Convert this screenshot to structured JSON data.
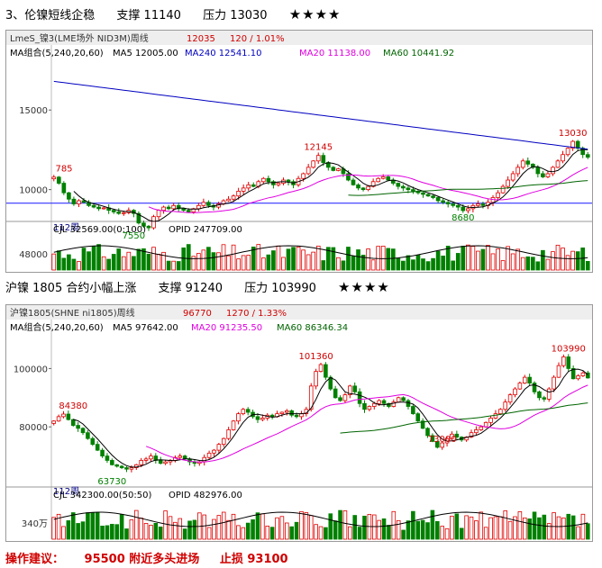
{
  "section1": {
    "title": "3、伦镍短线企稳",
    "support": "支撑 11140",
    "resistance": "压力 13030",
    "stars": "★★★★"
  },
  "section2": {
    "title": "沪镍 1805 合约小幅上涨",
    "support": "支撑 91240",
    "resistance": "压力 103990",
    "stars": "★★★★"
  },
  "advice": {
    "label": "操作建议：",
    "entry": "95500 附近多头进场",
    "stop": "止损 93100"
  },
  "colors": {
    "up": "#e00000",
    "down": "#008000",
    "ma5": "#000000",
    "ma20": "#e000e0",
    "ma60": "#006400",
    "ma240": "#0000c0",
    "support_line": "#3333ff"
  },
  "chart_data": [
    {
      "type": "candlestick",
      "instrument": "LmeS_镍3(LME场外 NID3M)周线",
      "last_price": "12035",
      "change": "120 / 1.01%",
      "legend": [
        "MA组合(5,240,20,60)",
        "MA5 12005.00",
        "MA240 12541.10",
        "MA20 11138.00",
        "MA60 10441.92"
      ],
      "period_label": "112周",
      "ylabels": [
        "15000",
        "10000"
      ],
      "ylim": [
        8000,
        17500
      ],
      "annotations": [
        {
          "text": "785",
          "x": 0,
          "y": 10785
        },
        {
          "text": "12145",
          "x": 53,
          "y": 12145
        },
        {
          "text": "7550",
          "x": 16,
          "y": 7550
        },
        {
          "text": "8680",
          "x": 82,
          "y": 8680
        },
        {
          "text": "13030",
          "x": 104,
          "y": 13030
        }
      ],
      "support_level": 9150,
      "closes": [
        10785,
        10400,
        9800,
        9400,
        9100,
        9300,
        9200,
        9000,
        8900,
        8800,
        8850,
        8700,
        8600,
        8500,
        8550,
        8700,
        8500,
        7900,
        7700,
        7600,
        8300,
        8700,
        8900,
        8800,
        9000,
        8800,
        8700,
        8600,
        8800,
        9000,
        9200,
        9000,
        8900,
        9100,
        9300,
        9400,
        9600,
        9900,
        10100,
        10300,
        10200,
        10500,
        10700,
        10500,
        10300,
        10400,
        10600,
        10500,
        10300,
        10700,
        11000,
        11400,
        11800,
        12145,
        11700,
        11400,
        11200,
        11300,
        11000,
        10600,
        10300,
        10100,
        10000,
        10200,
        10500,
        10700,
        10800,
        10600,
        10400,
        10200,
        10100,
        10000,
        9900,
        9800,
        9700,
        9600,
        9500,
        9300,
        9200,
        9100,
        9000,
        8900,
        8680,
        8800,
        9000,
        9100,
        9000,
        9200,
        9500,
        9800,
        10200,
        10600,
        11000,
        11400,
        11800,
        11600,
        11400,
        11000,
        10800,
        11000,
        11400,
        11800,
        12200,
        12600,
        13030,
        12600,
        12200,
        12035
      ],
      "volume_label": "CJL",
      "volume_value": "32569.00(0:100)",
      "oi_label": "OPID",
      "oi_value": "247709.00",
      "volume_ytick": "48000"
    },
    {
      "type": "candlestick",
      "instrument": "沪镍1805(SHNE ni1805)周线",
      "last_price": "96770",
      "change": "1270 / 1.33%",
      "legend": [
        "MA组合(5,240,20,60)",
        "MA5 97642.00",
        "MA20 91235.50",
        "MA60 86346.34"
      ],
      "period_label": "112周",
      "ylabels": [
        "100000",
        "80000"
      ],
      "ylim": [
        60000,
        110000
      ],
      "annotations": [
        {
          "text": "84380",
          "x": 4,
          "y": 84380
        },
        {
          "text": "63730",
          "x": 12,
          "y": 63730
        },
        {
          "text": "101360",
          "x": 54,
          "y": 101360
        },
        {
          "text": "73000",
          "x": 80,
          "y": 73000
        },
        {
          "text": "103990",
          "x": 106,
          "y": 103990
        }
      ],
      "closes": [
        82000,
        83500,
        84380,
        82500,
        80500,
        79500,
        78000,
        76000,
        74000,
        72000,
        70000,
        68500,
        67000,
        66500,
        66000,
        65500,
        66000,
        67000,
        68500,
        69000,
        70000,
        68500,
        67500,
        68000,
        68500,
        69500,
        70000,
        69000,
        68000,
        67500,
        68000,
        69500,
        71000,
        72000,
        74000,
        76000,
        79000,
        82000,
        84500,
        86000,
        85000,
        83500,
        82500,
        83000,
        84000,
        83500,
        84500,
        85000,
        85500,
        84000,
        83500,
        84500,
        86000,
        94000,
        99000,
        101360,
        97000,
        93000,
        90000,
        89000,
        91000,
        94000,
        92000,
        88000,
        86000,
        87000,
        88000,
        89000,
        88000,
        87000,
        88500,
        90000,
        89000,
        87000,
        84500,
        82000,
        79500,
        77000,
        75000,
        73000,
        74500,
        76000,
        77500,
        76500,
        75500,
        76500,
        78000,
        79000,
        80000,
        81500,
        83000,
        84500,
        86000,
        88500,
        91000,
        93000,
        95000,
        97000,
        95000,
        92000,
        90000,
        89500,
        93000,
        97000,
        101000,
        103990,
        100000,
        96500,
        97500,
        98500,
        96770
      ],
      "volume_label": "CJL",
      "volume_value": "342300.00(50:50)",
      "oi_label": "OPID",
      "oi_value": "482976.00",
      "volume_ytick": "340万"
    }
  ]
}
